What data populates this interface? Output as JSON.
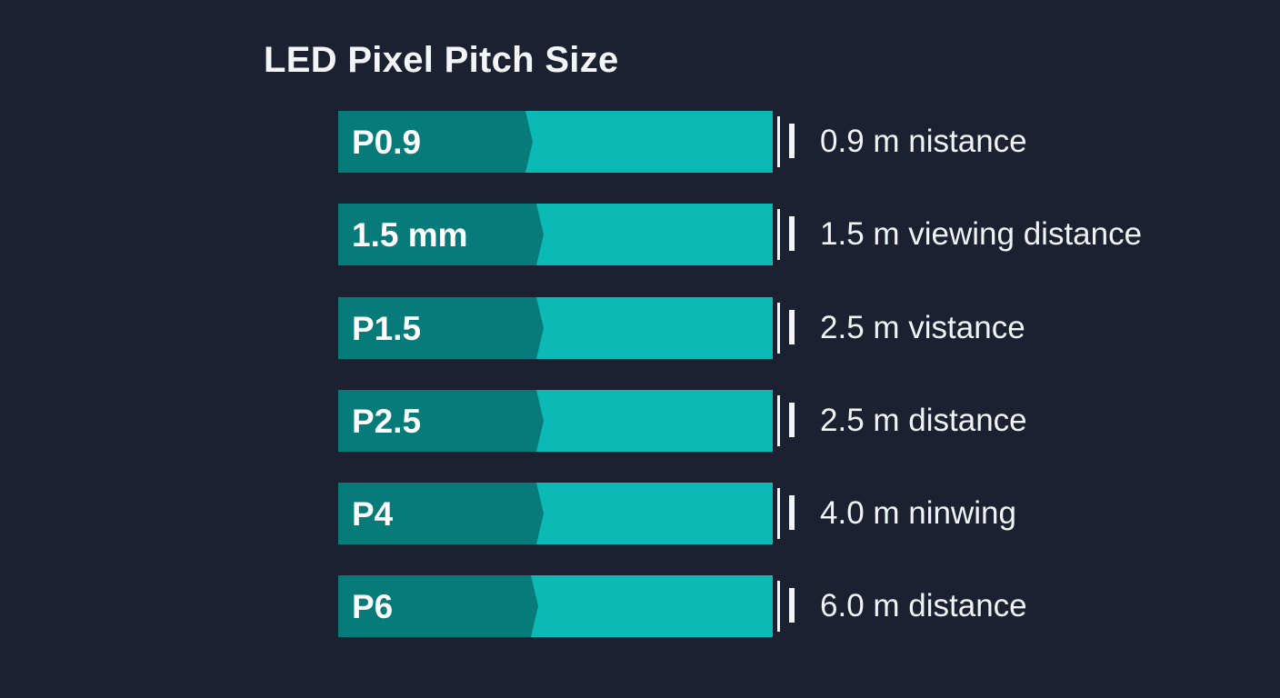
{
  "title": "LED Pixel Pitch Size",
  "colors": {
    "background": "#1b2131",
    "bar_light": "#0bbab4",
    "bar_dark": "#067b7a",
    "text": "#ffffff"
  },
  "rows": [
    {
      "label": "P0.9",
      "description": "0.9 m nistance"
    },
    {
      "label": "1.5 mm",
      "description": "1.5 m viewing distance"
    },
    {
      "label": "P1.5",
      "description": "2.5 m vistance"
    },
    {
      "label": "P2.5",
      "description": "2.5 m distance"
    },
    {
      "label": "P4",
      "description": "4.0 m ninwing"
    },
    {
      "label": "P6",
      "description": "6.0 m distance"
    }
  ]
}
